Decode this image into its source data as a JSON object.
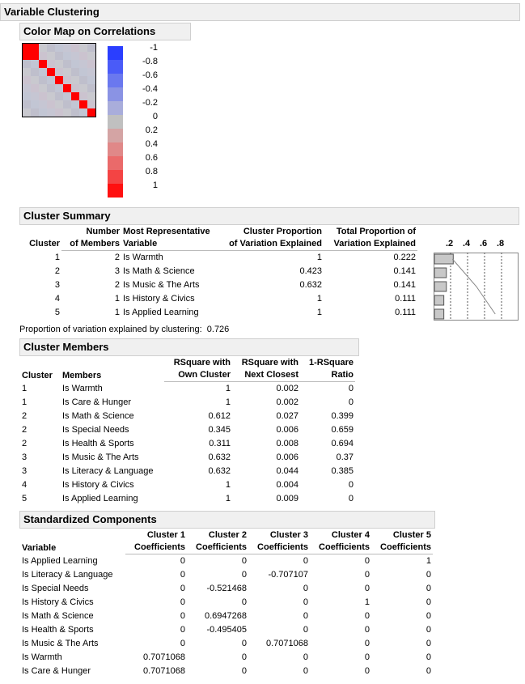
{
  "title": "Variable Clustering",
  "color_map": {
    "title": "Color Map on Correlations",
    "n": 9,
    "diag_color": "#ff0000",
    "off_color": "#c3c3cf",
    "legend": [
      {
        "label": "-1",
        "color": "#2a3eff"
      },
      {
        "label": "-0.8",
        "color": "#4a5bf8"
      },
      {
        "label": "-0.6",
        "color": "#6a78ef"
      },
      {
        "label": "-0.4",
        "color": "#8a93e4"
      },
      {
        "label": "-0.2",
        "color": "#a9addb"
      },
      {
        "label": "0",
        "color": "#c0c0c0"
      },
      {
        "label": "0.2",
        "color": "#d4a4a4"
      },
      {
        "label": "0.4",
        "color": "#e08888"
      },
      {
        "label": "0.6",
        "color": "#ea6a6a"
      },
      {
        "label": "0.8",
        "color": "#f44444"
      },
      {
        "label": "1",
        "color": "#ff1010"
      }
    ]
  },
  "summary": {
    "title": "Cluster Summary",
    "headers": {
      "cluster": "Cluster",
      "members_1": "Number",
      "members_2": "of Members",
      "rep_1": "Most Representative",
      "rep_2": "Variable",
      "prop_1": "Cluster Proportion",
      "prop_2": "of Variation Explained",
      "total_1": "Total Proportion of",
      "total_2": "Variation Explained"
    },
    "axis_ticks": [
      ".2",
      ".4",
      ".6",
      ".8"
    ],
    "rows": [
      {
        "cluster": "1",
        "members": "2",
        "rep": "Is Warmth",
        "prop": "1",
        "total": "0.222"
      },
      {
        "cluster": "2",
        "members": "3",
        "rep": "Is Math & Science",
        "prop": "0.423",
        "total": "0.141"
      },
      {
        "cluster": "3",
        "members": "2",
        "rep": "Is Music & The Arts",
        "prop": "0.632",
        "total": "0.141"
      },
      {
        "cluster": "4",
        "members": "1",
        "rep": "Is History & Civics",
        "prop": "1",
        "total": "0.111"
      },
      {
        "cluster": "5",
        "members": "1",
        "rep": "Is Applied Learning",
        "prop": "1",
        "total": "0.111"
      }
    ],
    "bar_values": [
      0.222,
      0.141,
      0.141,
      0.111,
      0.111
    ],
    "cumulative": [
      0.222,
      0.363,
      0.504,
      0.615,
      0.726
    ],
    "footer_label": "Proportion of variation explained by clustering:",
    "footer_value": "0.726"
  },
  "members": {
    "title": "Cluster Members",
    "headers": {
      "cluster": "Cluster",
      "members": "Members",
      "own_1": "RSquare with",
      "own_2": "Own Cluster",
      "next_1": "RSquare with",
      "next_2": "Next Closest",
      "ratio_1": "1-RSquare",
      "ratio_2": "Ratio"
    },
    "rows": [
      {
        "cluster": "1",
        "member": "Is Warmth",
        "own": "1",
        "next": "0.002",
        "ratio": "0"
      },
      {
        "cluster": "1",
        "member": "Is Care & Hunger",
        "own": "1",
        "next": "0.002",
        "ratio": "0"
      },
      {
        "cluster": "2",
        "member": "Is Math & Science",
        "own": "0.612",
        "next": "0.027",
        "ratio": "0.399"
      },
      {
        "cluster": "2",
        "member": "Is Special Needs",
        "own": "0.345",
        "next": "0.006",
        "ratio": "0.659"
      },
      {
        "cluster": "2",
        "member": "Is Health & Sports",
        "own": "0.311",
        "next": "0.008",
        "ratio": "0.694"
      },
      {
        "cluster": "3",
        "member": "Is Music & The Arts",
        "own": "0.632",
        "next": "0.006",
        "ratio": "0.37"
      },
      {
        "cluster": "3",
        "member": "Is Literacy & Language",
        "own": "0.632",
        "next": "0.044",
        "ratio": "0.385"
      },
      {
        "cluster": "4",
        "member": "Is History & Civics",
        "own": "1",
        "next": "0.004",
        "ratio": "0"
      },
      {
        "cluster": "5",
        "member": "Is Applied Learning",
        "own": "1",
        "next": "0.009",
        "ratio": "0"
      }
    ]
  },
  "components": {
    "title": "Standardized Components",
    "headers": {
      "variable": "Variable",
      "coef": "Coefficients",
      "c1": "Cluster 1",
      "c2": "Cluster 2",
      "c3": "Cluster 3",
      "c4": "Cluster 4",
      "c5": "Cluster 5"
    },
    "rows": [
      {
        "variable": "Is Applied Learning",
        "c1": "0",
        "c2": "0",
        "c3": "0",
        "c4": "0",
        "c5": "1"
      },
      {
        "variable": "Is Literacy & Language",
        "c1": "0",
        "c2": "0",
        "c3": "-0.707107",
        "c4": "0",
        "c5": "0"
      },
      {
        "variable": "Is Special Needs",
        "c1": "0",
        "c2": "-0.521468",
        "c3": "0",
        "c4": "0",
        "c5": "0"
      },
      {
        "variable": "Is History & Civics",
        "c1": "0",
        "c2": "0",
        "c3": "0",
        "c4": "1",
        "c5": "0"
      },
      {
        "variable": "Is Math & Science",
        "c1": "0",
        "c2": "0.6947268",
        "c3": "0",
        "c4": "0",
        "c5": "0"
      },
      {
        "variable": "Is Health & Sports",
        "c1": "0",
        "c2": "-0.495405",
        "c3": "0",
        "c4": "0",
        "c5": "0"
      },
      {
        "variable": "Is Music & The Arts",
        "c1": "0",
        "c2": "0",
        "c3": "0.7071068",
        "c4": "0",
        "c5": "0"
      },
      {
        "variable": "Is Warmth",
        "c1": "0.7071068",
        "c2": "0",
        "c3": "0",
        "c4": "0",
        "c5": "0"
      },
      {
        "variable": "Is Care & Hunger",
        "c1": "0.7071068",
        "c2": "0",
        "c3": "0",
        "c4": "0",
        "c5": "0"
      }
    ]
  }
}
